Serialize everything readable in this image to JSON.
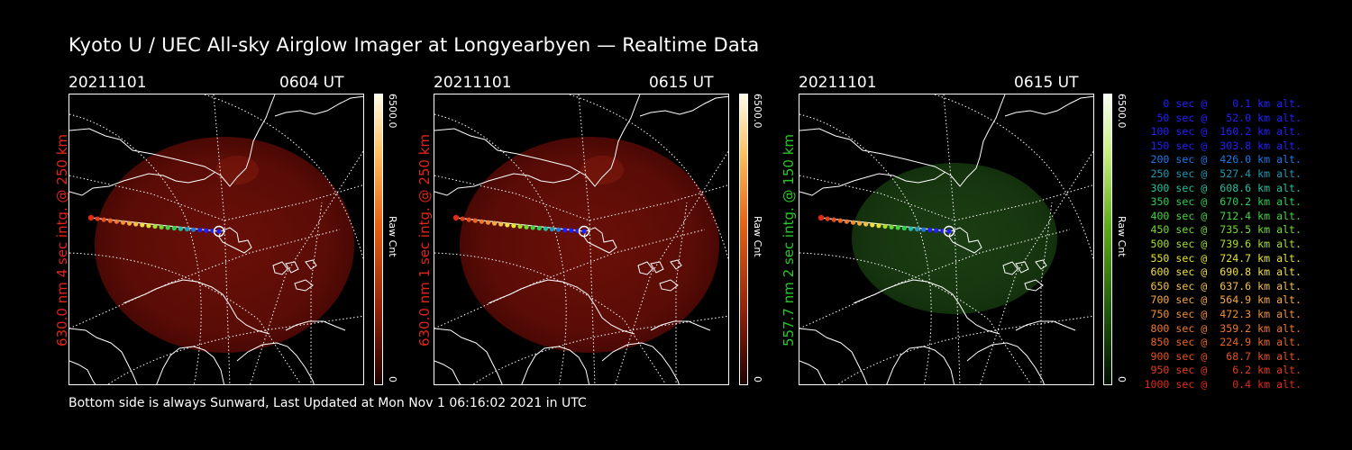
{
  "title": "Kyoto U / UEC All-sky Airglow Imager at Longyearbyen — Realtime Data",
  "footer": "Bottom side is always Sunward, Last Updated at Mon Nov  1 06:16:02 2021 in UTC",
  "panels": [
    {
      "date": "20211101",
      "time": "0604 UT",
      "ylabel": "630.0 nm 4 sec intg. @ 250 km",
      "label_color": "#e0241a",
      "glow": "red",
      "cbar_max": "6500.0",
      "cbar_min": "0",
      "cbar_unit": "Raw Cnt"
    },
    {
      "date": "20211101",
      "time": "0615 UT",
      "ylabel": "630.0 nm 1 sec intg. @ 250 km",
      "label_color": "#e0241a",
      "glow": "red",
      "cbar_max": "6500.0",
      "cbar_min": "0",
      "cbar_unit": "Raw Cnt"
    },
    {
      "date": "20211101",
      "time": "0615 UT",
      "ylabel": "557.7 nm 2 sec intg. @ 150 km",
      "label_color": "#28c828",
      "glow": "green",
      "cbar_max": "6500.0",
      "cbar_min": "0",
      "cbar_unit": "Raw Cnt"
    }
  ],
  "legend": [
    {
      "text": "   0 sec @    0.1 km alt.",
      "color": "#2020ff"
    },
    {
      "text": "  50 sec @   52.0 km alt.",
      "color": "#2020ff"
    },
    {
      "text": " 100 sec @  160.2 km alt.",
      "color": "#2020ff"
    },
    {
      "text": " 150 sec @  303.8 km alt.",
      "color": "#2020ff"
    },
    {
      "text": " 200 sec @  426.0 km alt.",
      "color": "#1e78e8"
    },
    {
      "text": " 250 sec @  527.4 km alt.",
      "color": "#1e9ab4"
    },
    {
      "text": " 300 sec @  608.6 km alt.",
      "color": "#22c0a0"
    },
    {
      "text": " 350 sec @  670.2 km alt.",
      "color": "#2ad050"
    },
    {
      "text": " 400 sec @  712.4 km alt.",
      "color": "#44d640"
    },
    {
      "text": " 450 sec @  735.5 km alt.",
      "color": "#70dc30"
    },
    {
      "text": " 500 sec @  739.6 km alt.",
      "color": "#a8e028"
    },
    {
      "text": " 550 sec @  724.7 km alt.",
      "color": "#e4e42a"
    },
    {
      "text": " 600 sec @  690.8 km alt.",
      "color": "#f0e040"
    },
    {
      "text": " 650 sec @  637.6 km alt.",
      "color": "#f4c044"
    },
    {
      "text": " 700 sec @  564.9 km alt.",
      "color": "#f6a83c"
    },
    {
      "text": " 750 sec @  472.3 km alt.",
      "color": "#f49030"
    },
    {
      "text": " 800 sec @  359.2 km alt.",
      "color": "#f07828"
    },
    {
      "text": " 850 sec @  224.9 km alt.",
      "color": "#ec6420"
    },
    {
      "text": " 900 sec @   68.7 km alt.",
      "color": "#e8501c"
    },
    {
      "text": " 950 sec @    6.2 km alt.",
      "color": "#e43c18"
    },
    {
      "text": "1000 sec @    0.4 km alt.",
      "color": "#e02a14"
    }
  ]
}
